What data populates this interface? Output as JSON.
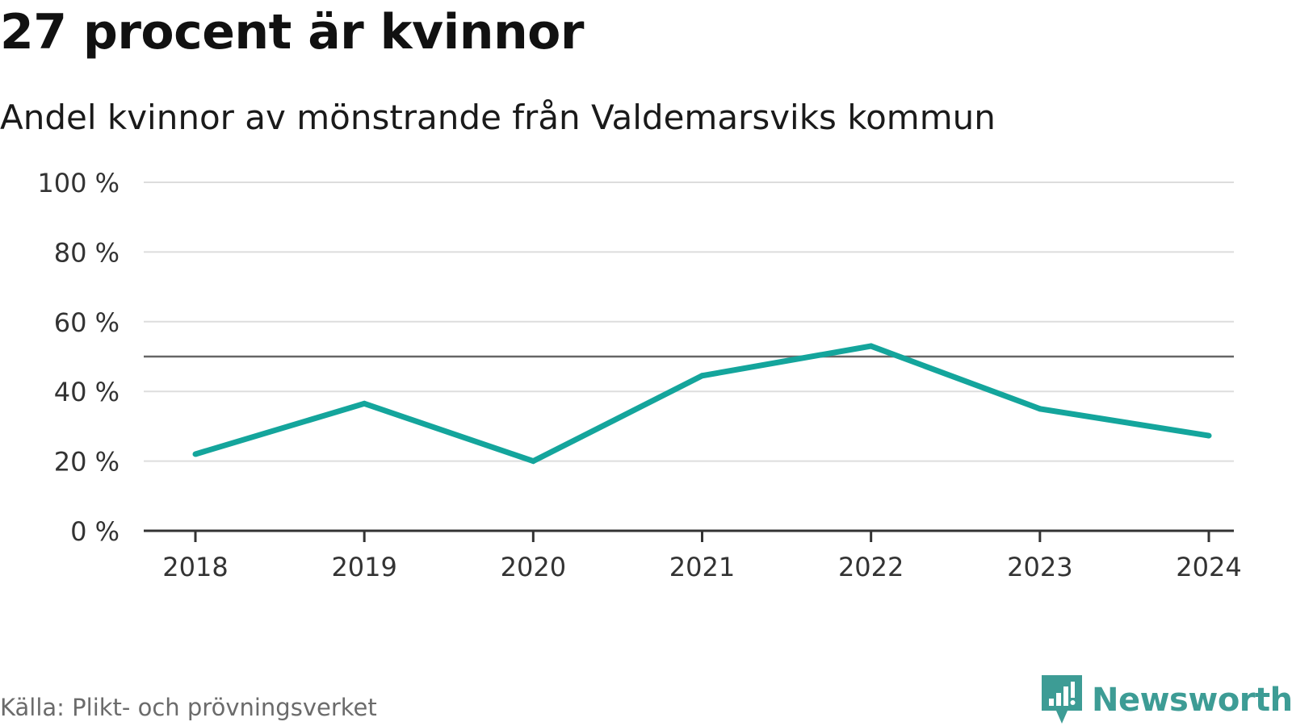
{
  "title": "27 procent är kvinnor",
  "subtitle": "Andel kvinnor av mönstrande från Valdemarsviks kommun",
  "source": "Källa: Plikt- och prövningsverket",
  "brand": {
    "name": "Newsworthy",
    "icon": "newsworthy-logo-icon",
    "color": "#3d9c95"
  },
  "colors": {
    "series": "#14a59c",
    "reference_line": "#666666",
    "grid": "#dddddd",
    "axis": "#333333"
  },
  "chart_data": {
    "type": "line",
    "title": "27 procent är kvinnor",
    "subtitle": "Andel kvinnor av mönstrande från Valdemarsviks kommun",
    "xlabel": "",
    "ylabel": "",
    "x": [
      "2018",
      "2019",
      "2020",
      "2021",
      "2022",
      "2023",
      "2024"
    ],
    "series": [
      {
        "name": "Andel kvinnor",
        "values": [
          22,
          36.5,
          20,
          44.5,
          53,
          35,
          27.3
        ]
      }
    ],
    "ylim": [
      0,
      100
    ],
    "yticks": [
      0,
      20,
      40,
      60,
      80,
      100
    ],
    "ytick_labels": [
      "0 %",
      "20 %",
      "40 %",
      "60 %",
      "80 %",
      "100 %"
    ],
    "reference_line": 50,
    "grid": true,
    "legend": "none"
  }
}
